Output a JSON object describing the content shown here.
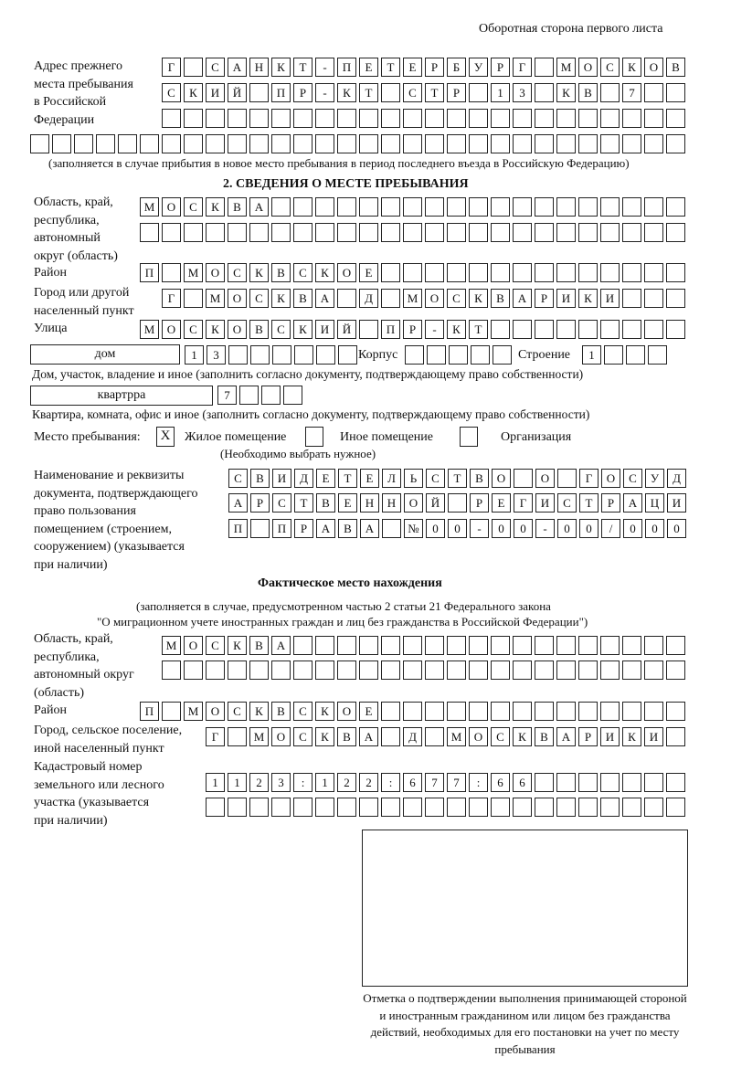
{
  "header": {
    "side_title": "Оборотная сторона первого листа"
  },
  "previous_address": {
    "label": [
      "Адрес прежнего",
      "места пребывания",
      "в Российской",
      "Федерации"
    ],
    "rows": [
      "Г САНКТ-ПЕТЕРБУРГ МОСКОВ",
      "СКИЙ ПР-КТ СТР 13 КВ 7",
      "",
      ""
    ],
    "note": "(заполняется в случае прибытия в новое место пребывания в период последнего въезда в Российскую Федерацию)"
  },
  "section2": {
    "title": "2. СВЕДЕНИЯ О МЕСТЕ ПРЕБЫВАНИЯ",
    "region_label": [
      "Область, край,",
      "республика,",
      "автономный",
      "округ (область)"
    ],
    "region_rows": [
      "МОСКВА",
      ""
    ],
    "district_label": "Район",
    "district_row": "П МОСКВСКОЕ",
    "city_label": [
      "Город или другой",
      "населенный пункт"
    ],
    "city_row": "Г МОСКВА Д МОСКВАРИКИ",
    "street_label": "Улица",
    "street_row": "МОСКОВСКИЙ ПР-КТ",
    "house_type": "дом",
    "house_row": "13",
    "korpus_label": "Корпус",
    "korpus_row": "",
    "stroenie_label": "Строение",
    "stroenie_row": "1",
    "house_note": "Дом, участок, владение и иное (заполнить согласно документу, подтверждающему право собственности)",
    "apt_type": "квартрра",
    "apt_row": "7",
    "apt_note": "Квартира, комната, офис и иное (заполнить согласно документу, подтверждающему право собственности)",
    "place_label": "Место пребывания:",
    "place_options": [
      {
        "label": "Жилое помещение",
        "mark": "X"
      },
      {
        "label": "Иное помещение",
        "mark": ""
      },
      {
        "label": "Организация",
        "mark": ""
      }
    ],
    "place_note": "(Необходимо выбрать нужное)",
    "doc_label": [
      "Наименование и реквизиты",
      "документа, подтверждающего",
      "право пользования",
      "помещением (строением,",
      "сооружением) (указывается",
      "при наличии)"
    ],
    "doc_rows": [
      "СВИДЕТЕЛЬСТВО О ГОСУД",
      "АРСТВЕННОЙ РЕГИСТРАЦИ",
      "П ПРАВА №00-00-00/000"
    ]
  },
  "actual": {
    "title": "Фактическое место нахождения",
    "note1": "(заполняется в случае, предусмотренном частью 2 статьи 21 Федерального закона",
    "note2": "\"О миграционном учете иностранных граждан и лиц без гражданства в Российской Федерации\")",
    "region_label": [
      "Область, край,",
      "республика,",
      "автономный округ",
      "(область)"
    ],
    "region_rows": [
      "МОСКВА",
      ""
    ],
    "district_label": "Район",
    "district_row": "П МОСКВСКОЕ",
    "city_label": [
      "Город, сельское поселение,",
      "иной населенный пункт"
    ],
    "city_row": "Г МОСКВА Д МОСКВАРИКИ",
    "cadastral_label": [
      "Кадастровый номер",
      "земельного или лесного",
      "участка (указывается",
      "при наличии)"
    ],
    "cadastral_rows": [
      "1123:122:677:66",
      ""
    ]
  },
  "confirmation": {
    "caption": "Отметка о подтверждении выполнения принимающей стороной и иностранным гражданином или лицом без гражданства действий, необходимых для его постановки на учет по месту пребывания"
  }
}
